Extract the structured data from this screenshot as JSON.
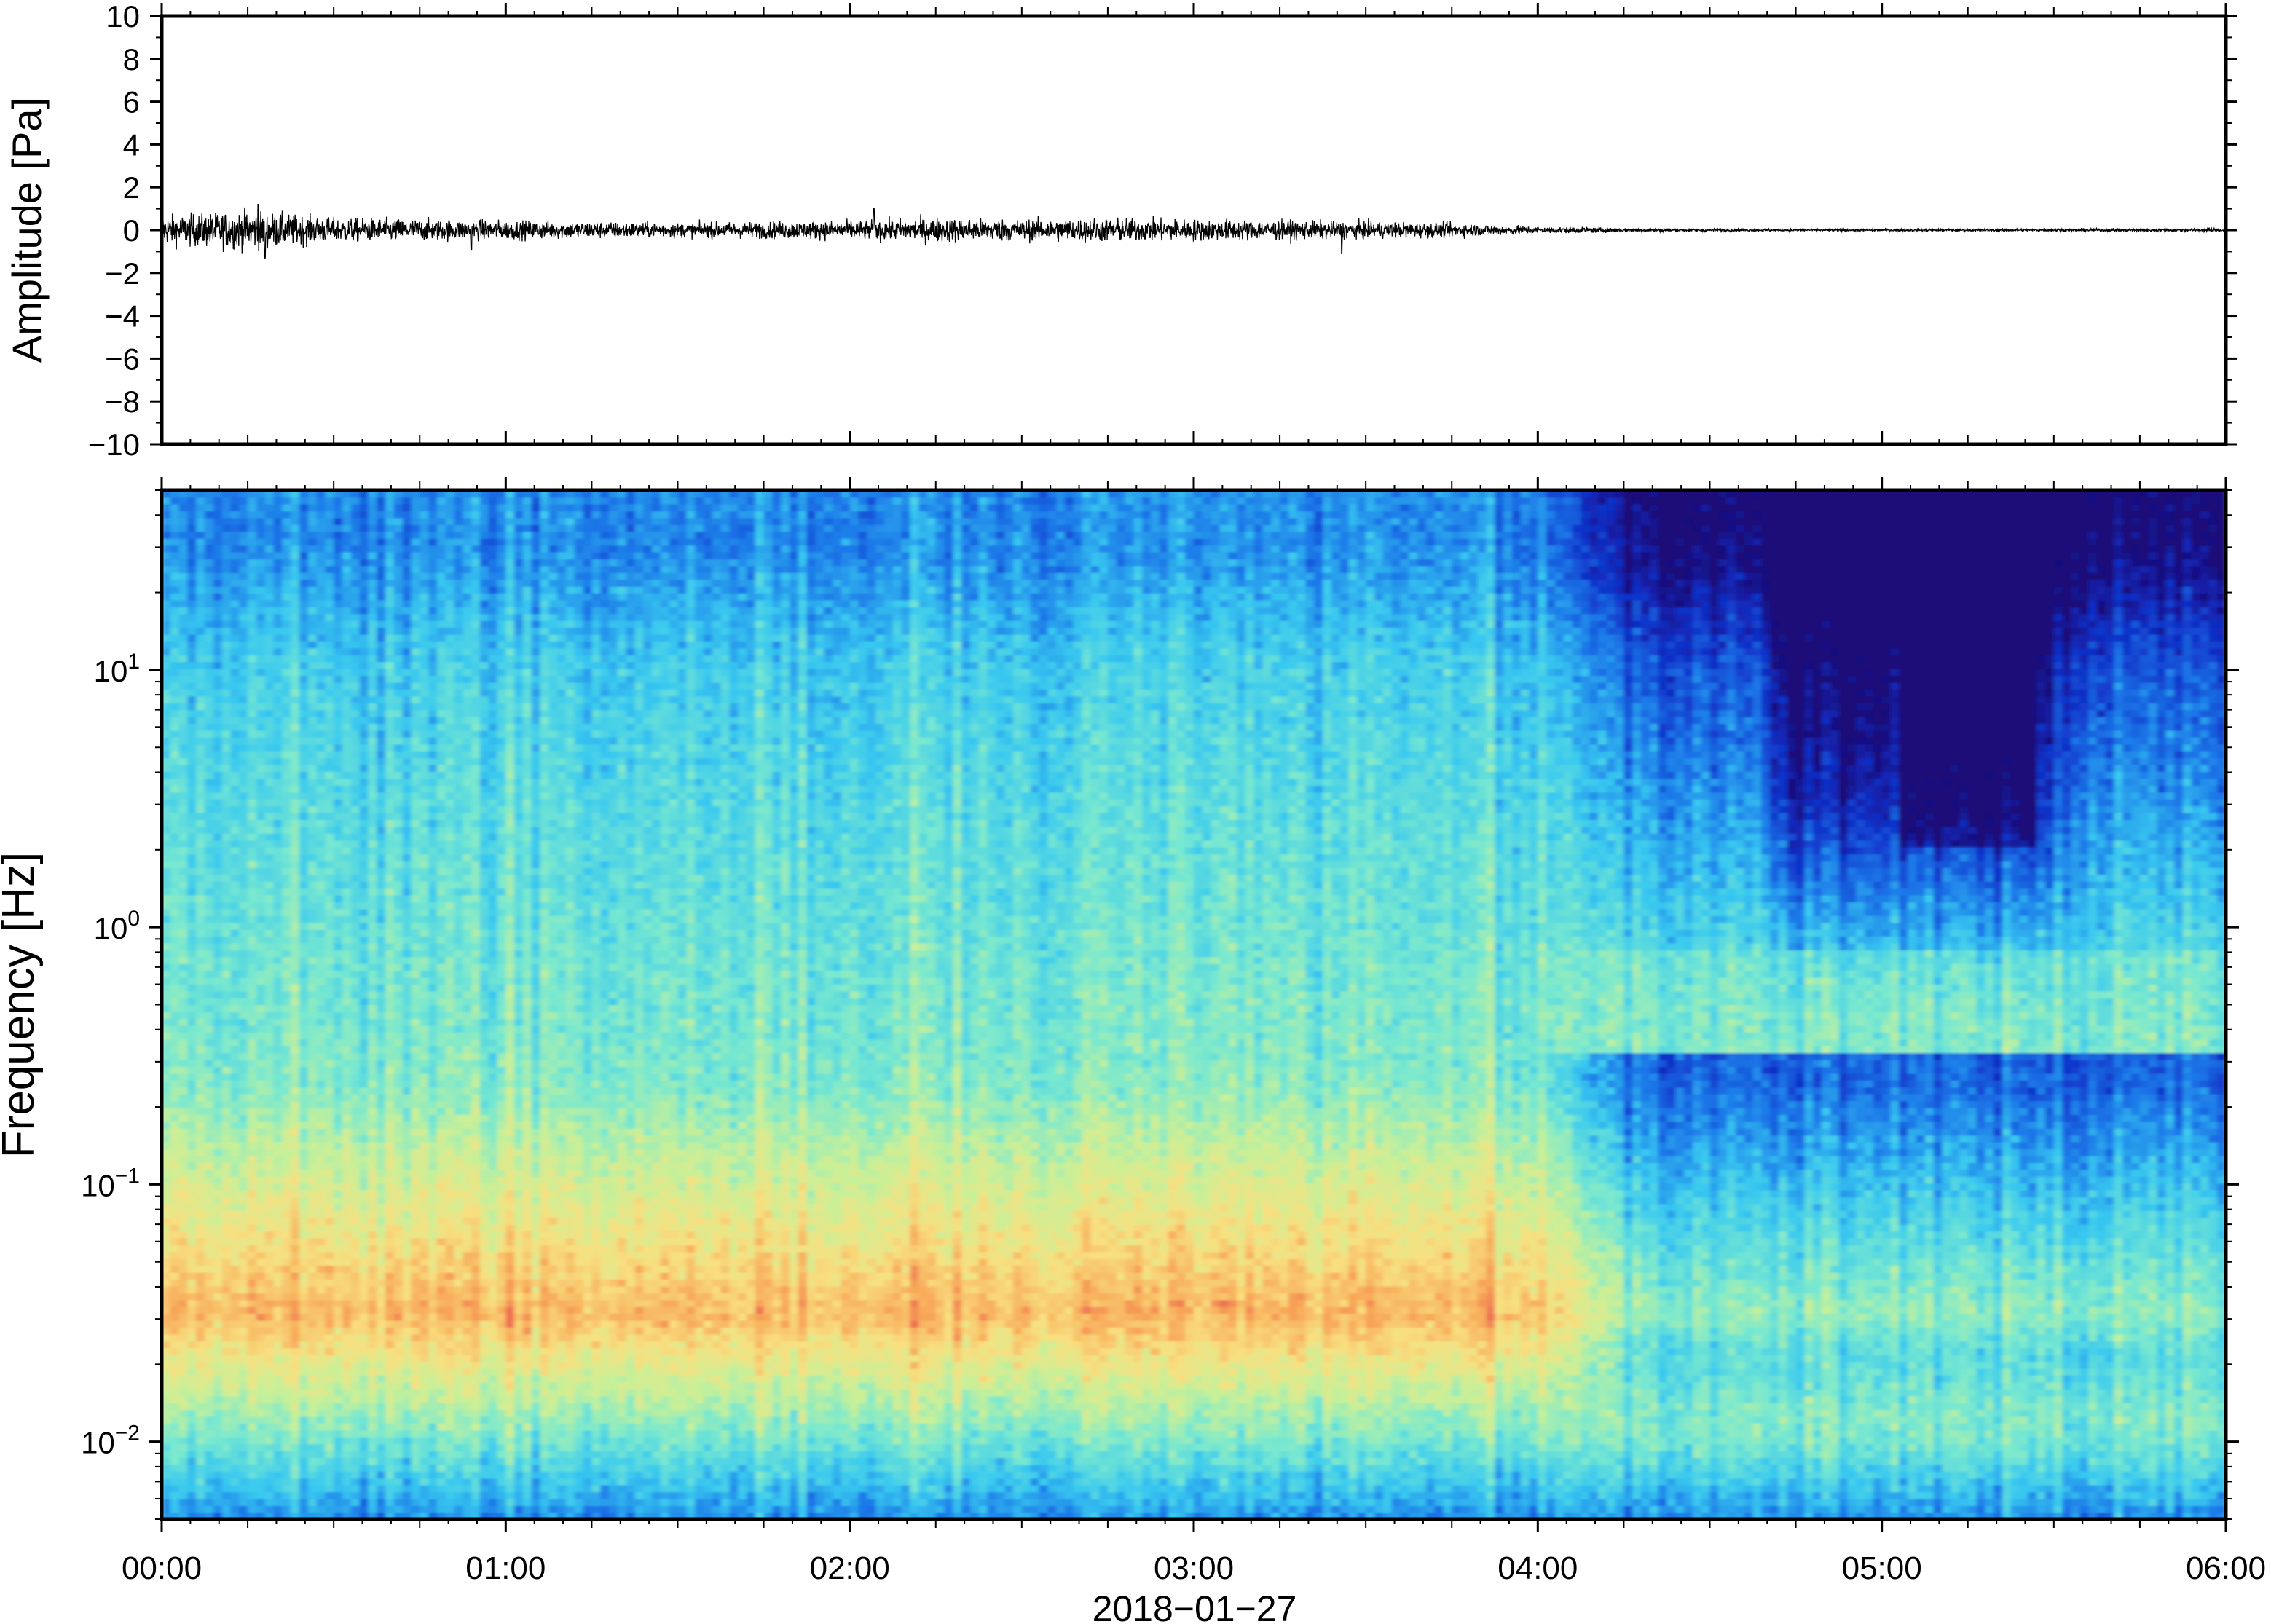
{
  "chart_data": [
    {
      "type": "line",
      "panel": "waveform",
      "ylabel": "Amplitude [Pa]",
      "ylim": [
        -10,
        10
      ],
      "yticks": [
        10,
        8,
        6,
        4,
        2,
        0,
        -2,
        -4,
        -6,
        -8,
        -10
      ],
      "ytick_labels": [
        "10",
        "8",
        "6",
        "4",
        "2",
        "0",
        "−2",
        "−4",
        "−6",
        "−8",
        "−10"
      ],
      "xlim_hours": [
        0,
        6
      ],
      "grid": false,
      "line_color": "#000000",
      "envelope": {
        "t_hours": [
          0.0,
          0.25,
          0.5,
          0.75,
          1.0,
          1.25,
          1.5,
          1.75,
          2.0,
          2.25,
          2.5,
          2.75,
          3.0,
          3.25,
          3.5,
          3.75,
          4.0,
          4.25,
          4.5,
          4.75,
          5.0,
          5.25,
          5.5,
          5.75,
          6.0
        ],
        "amplitude_pa": [
          0.6,
          0.8,
          0.5,
          0.45,
          0.4,
          0.35,
          0.3,
          0.35,
          0.4,
          0.5,
          0.45,
          0.5,
          0.45,
          0.4,
          0.35,
          0.3,
          0.15,
          0.08,
          0.06,
          0.05,
          0.05,
          0.05,
          0.06,
          0.07,
          0.08
        ]
      },
      "peaks": [
        {
          "t_hours": 0.28,
          "value": 1.2
        },
        {
          "t_hours": 0.3,
          "value": -1.3
        },
        {
          "t_hours": 0.9,
          "value": -0.9
        },
        {
          "t_hours": 2.07,
          "value": 1.0
        },
        {
          "t_hours": 3.43,
          "value": -1.1
        }
      ]
    },
    {
      "type": "heatmap",
      "panel": "spectrogram",
      "ylabel": "Frequency [Hz]",
      "yscale": "log",
      "ylim_hz": [
        0.005,
        50
      ],
      "yticks_hz": [
        0.01,
        0.1,
        1,
        10
      ],
      "ytick_labels": [
        {
          "base": "10",
          "exp": "−2"
        },
        {
          "base": "10",
          "exp": "−1"
        },
        {
          "base": "10",
          "exp": "0"
        },
        {
          "base": "10",
          "exp": "1"
        }
      ],
      "xlabel": "2018−01−27",
      "xlim_hours": [
        0,
        6
      ],
      "xtick_labels": [
        "00:00",
        "01:00",
        "02:00",
        "03:00",
        "04:00",
        "05:00",
        "06:00"
      ],
      "colormap": [
        "#1a0a78",
        "#1030c8",
        "#1c78e8",
        "#38c8f0",
        "#78e8d0",
        "#c8f098",
        "#f8e080",
        "#f8a858",
        "#e85050"
      ],
      "colorbar_shown": false,
      "features": [
        {
          "t_hours": [
            0,
            4.2
          ],
          "band_hz": [
            0.03,
            0.12
          ],
          "intensity": "high (red/orange)"
        },
        {
          "t_hours": [
            4.2,
            6
          ],
          "band_hz": [
            0.02,
            0.1
          ],
          "intensity": "low (blue/cyan)"
        },
        {
          "t_hours": [
            4.7,
            5.5
          ],
          "band_hz": [
            0.5,
            50
          ],
          "intensity": "very low (dark blue)"
        },
        {
          "t_hours": [
            0,
            6
          ],
          "band_hz": [
            20,
            50
          ],
          "intensity": "low (blue)"
        }
      ]
    }
  ]
}
